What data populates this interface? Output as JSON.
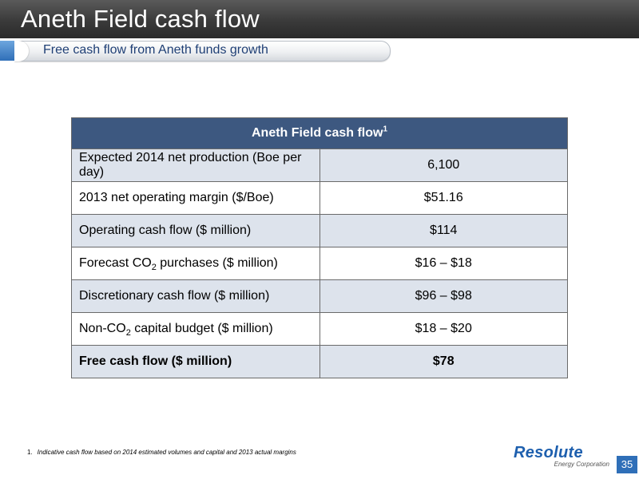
{
  "slide": {
    "title": "Aneth Field cash flow",
    "subtitle": "Free cash flow from Aneth funds growth",
    "page_number": "35"
  },
  "table": {
    "header": "Aneth Field cash flow",
    "header_sup": "1",
    "rows": [
      {
        "label": "Expected 2014 net production (Boe per day)",
        "value": "6,100"
      },
      {
        "label": "2013 net operating margin ($/Boe)",
        "value": "$51.16"
      },
      {
        "label": "Operating cash flow ($ million)",
        "value": "$114"
      },
      {
        "label_pre": "Forecast CO",
        "label_sub": "2",
        "label_post": " purchases ($ million)",
        "value": "$16 – $18"
      },
      {
        "label": "Discretionary cash flow ($ million)",
        "value": "$96 – $98"
      },
      {
        "label_pre": "Non-CO",
        "label_sub": "2",
        "label_post": " capital budget ($ million)",
        "value": "$18 – $20"
      },
      {
        "label": "Free cash flow ($ million)",
        "value": "$78"
      }
    ]
  },
  "footnote": {
    "number": "1.",
    "text": "Indicative cash flow based on 2014 estimated volumes and capital and 2013 actual margins"
  },
  "logo": {
    "name": "Resolute",
    "tagline": "Energy Corporation"
  },
  "colors": {
    "header_bg": "#3d5880",
    "row_shade": "#dde3ec",
    "accent_blue": "#2f6fb8",
    "subtitle_text": "#1f3f75"
  }
}
